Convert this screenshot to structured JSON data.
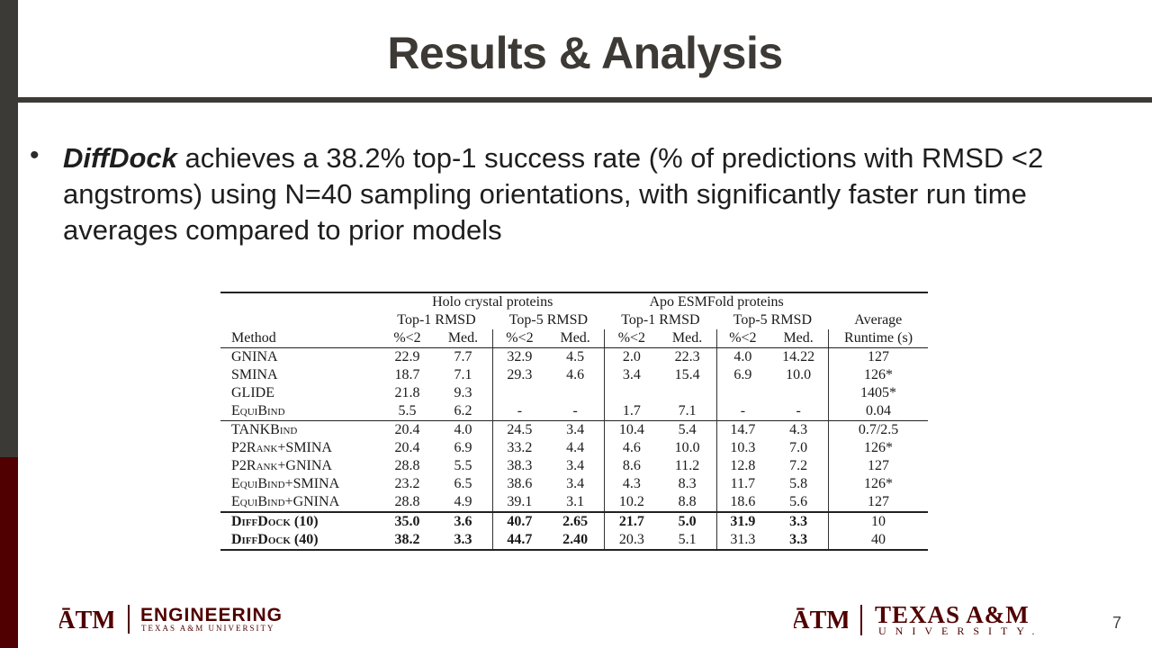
{
  "slide": {
    "title": "Results & Analysis",
    "bullet": {
      "emph": "DiffDock",
      "text": " achieves a 38.2% top-1 success rate (% of predictions with RMSD <2 angstroms) using N=40 sampling orientations, with significantly faster run time averages compared to prior models"
    },
    "page_number": "7"
  },
  "table": {
    "group_headers": [
      "Holo crystal proteins",
      "Apo ESMFold proteins"
    ],
    "sub_headers": [
      "Top-1 RMSD",
      "Top-5 RMSD",
      "Top-1 RMSD",
      "Top-5 RMSD",
      "Average"
    ],
    "columns": [
      "Method",
      "%<2",
      "Med.",
      "%<2",
      "Med.",
      "%<2",
      "Med.",
      "%<2",
      "Med.",
      "Runtime (s)"
    ],
    "rows": [
      [
        "GNINA",
        "22.9",
        "7.7",
        "32.9",
        "4.5",
        "2.0",
        "22.3",
        "4.0",
        "14.22",
        "127"
      ],
      [
        "SMINA",
        "18.7",
        "7.1",
        "29.3",
        "4.6",
        "3.4",
        "15.4",
        "6.9",
        "10.0",
        "126*"
      ],
      [
        "GLIDE",
        "21.8",
        "9.3",
        "",
        "",
        "",
        "",
        "",
        "",
        "1405*"
      ],
      [
        "EquiBind",
        "5.5",
        "6.2",
        "-",
        "-",
        "1.7",
        "7.1",
        "-",
        "-",
        "0.04"
      ],
      [
        "TANKBind",
        "20.4",
        "4.0",
        "24.5",
        "3.4",
        "10.4",
        "5.4",
        "14.7",
        "4.3",
        "0.7/2.5"
      ],
      [
        "P2Rank+SMINA",
        "20.4",
        "6.9",
        "33.2",
        "4.4",
        "4.6",
        "10.0",
        "10.3",
        "7.0",
        "126*"
      ],
      [
        "P2Rank+GNINA",
        "28.8",
        "5.5",
        "38.3",
        "3.4",
        "8.6",
        "11.2",
        "12.8",
        "7.2",
        "127"
      ],
      [
        "EquiBind+SMINA",
        "23.2",
        "6.5",
        "38.6",
        "3.4",
        "4.3",
        "8.3",
        "11.7",
        "5.8",
        "126*"
      ],
      [
        "EquiBind+GNINA",
        "28.8",
        "4.9",
        "39.1",
        "3.1",
        "10.2",
        "8.8",
        "18.6",
        "5.6",
        "127"
      ],
      [
        "DiffDock (10)",
        "35.0",
        "3.6",
        "40.7",
        "2.65",
        "21.7",
        "5.0",
        "31.9",
        "3.3",
        "10"
      ],
      [
        "DiffDock (40)",
        "38.2",
        "3.3",
        "44.7",
        "2.40",
        "20.3",
        "5.1",
        "31.3",
        "3.3",
        "40"
      ]
    ]
  },
  "footer": {
    "logo_text": "ĀTM",
    "engineering": "ENGINEERING",
    "engineering_sub": "TEXAS A&M UNIVERSITY",
    "tamu": "TEXAS A&M",
    "tamu_sub": "UNIVERSITY."
  },
  "colors": {
    "maroon": "#500000",
    "dark": "#3d3935"
  }
}
